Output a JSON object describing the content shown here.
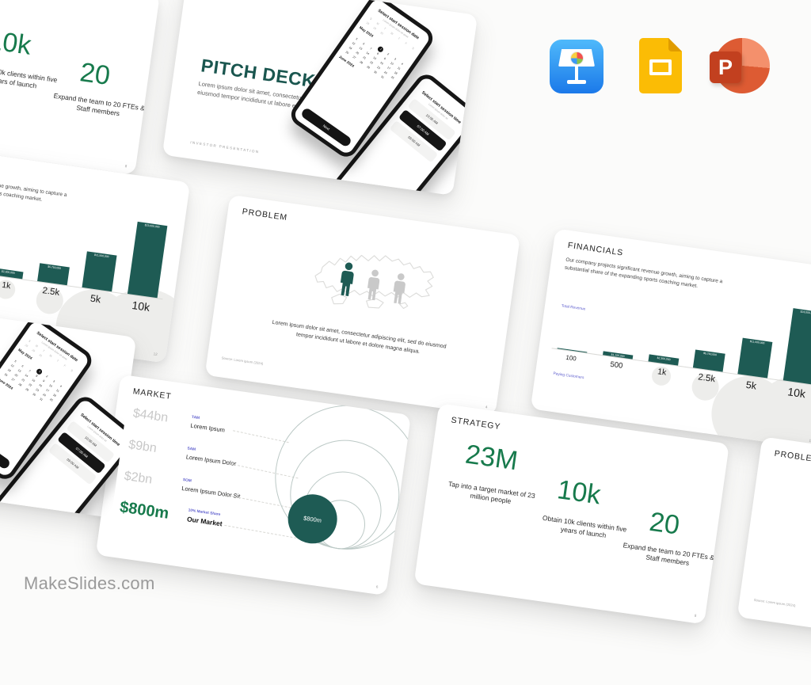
{
  "page": {
    "brand": "MakeSlides.com",
    "background": "#fbfbfa"
  },
  "colors": {
    "teal": "#1e5b54",
    "green": "#177a4c",
    "purple": "#5e5ecd",
    "value_gray": "#c8c8c8"
  },
  "app_icons": [
    {
      "name": "keynote"
    },
    {
      "name": "google-slides"
    },
    {
      "name": "powerpoint"
    }
  ],
  "slides": {
    "cover": {
      "title": "PITCH DECK",
      "body": "Lorem ipsum dolor sit amet, consectetur adipiscing elit, sed do eiusmod tempor incididunt ut labore et dolore magna aliqua",
      "footer": "INVESTOR  PRESENTATION",
      "phone_date": {
        "title": "Select start session date",
        "subtitle": "Lorem ipsum dolor sit amet",
        "weekdays": [
          "S",
          "M",
          "T",
          "W",
          "T",
          "F",
          "S"
        ],
        "prev_days": [
          28,
          29,
          30
        ],
        "month": "May 2024",
        "days": 31,
        "start_col": 3,
        "selected_day": 1,
        "next_month": "June 2024",
        "button": "Next"
      },
      "phone_time": {
        "title": "Select start session time",
        "subtitle": "Lorem ipsum dolor sit",
        "options": [
          "10:00 AM",
          "07:00 AM",
          "09:00 AM"
        ],
        "selected_index": 1
      }
    },
    "problem": {
      "title": "PROBLEM",
      "body": "Lorem ipsum dolor sit amet, consectetur adipiscing elit, sed do eiusmod tempor incididunt ut labore et dolore magna aliqua.",
      "source": "Source: Lorem ipsum (2024)",
      "page": "4"
    },
    "market": {
      "title": "MARKET",
      "rows": [
        {
          "value": "$44bn",
          "tag": "TAM",
          "label": "Lorem Ipsum"
        },
        {
          "value": "$9bn",
          "tag": "SAM",
          "label": "Lorem Ipsum Dolor"
        },
        {
          "value": "$2bn",
          "tag": "SOM",
          "label": "Lorem Ipsum Dolor Sit"
        },
        {
          "value": "$800m",
          "tag": "10% Market Share",
          "label": "Our Market"
        }
      ],
      "bubble_label": "$800m",
      "page": "6"
    },
    "strategy": {
      "title": "STRATEGY",
      "stats": [
        {
          "value": "23M",
          "label": "Tap into a target market of 23 million people"
        },
        {
          "value": "10k",
          "label": "Obtain 10k clients within five years of launch"
        },
        {
          "value": "20",
          "label": "Expand the team to 20 FTEs & Staff members"
        }
      ],
      "page": "8"
    },
    "financials": {
      "title": "FINANCIALS",
      "body": "Our company projects significant revenue growth, aiming to capture a substantial share of the expanding sports coaching market.",
      "ylabel": "Total Revenue",
      "xlabel": "Paying Customers",
      "page": "12"
    }
  },
  "chart_data": [
    {
      "type": "bar",
      "title": "FINANCIALS — Total Revenue by Paying Customers",
      "categories": [
        "100",
        "500",
        "1k",
        "2.5k",
        "5k",
        "10k"
      ],
      "values": [
        230000,
        1150000,
        2300000,
        5750000,
        11500000,
        23000000
      ],
      "bar_labels": [
        "",
        "$1,150,000",
        "$2,300,000",
        "$5,750,000",
        "$11,500,000",
        "$23,000,000"
      ],
      "xlabel": "Paying Customers",
      "ylabel": "Total Revenue",
      "ylim": [
        0,
        23000000
      ],
      "grid": false,
      "bar_color": "#1e5b54"
    },
    {
      "type": "pie",
      "title": "MARKET — nested market sizing circles",
      "categories": [
        "TAM",
        "SAM",
        "SOM",
        "Our Market (10% Market Share)"
      ],
      "values": [
        44000000000,
        9000000000,
        2000000000,
        800000000
      ],
      "legend_position": "left"
    }
  ]
}
